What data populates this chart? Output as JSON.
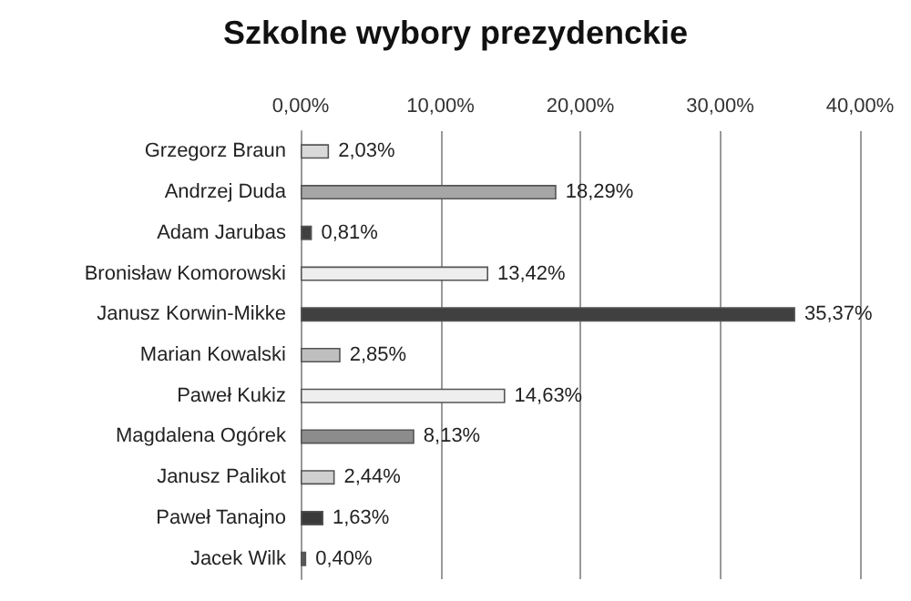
{
  "chart_data": {
    "type": "bar",
    "orientation": "horizontal",
    "title": "Szkolne wybory prezydenckie",
    "categories": [
      "Grzegorz Braun",
      "Andrzej Duda",
      "Adam Jarubas",
      "Bronisław Komorowski",
      "Janusz Korwin-Mikke",
      "Marian Kowalski",
      "Paweł Kukiz",
      "Magdalena Ogórek",
      "Janusz Palikot",
      "Paweł Tanajno",
      "Jacek Wilk"
    ],
    "values": [
      2.03,
      18.29,
      0.81,
      13.42,
      35.37,
      2.85,
      14.63,
      8.13,
      2.44,
      1.63,
      0.4
    ],
    "value_labels": [
      "2,03%",
      "18,29%",
      "0,81%",
      "13,42%",
      "35,37%",
      "2,85%",
      "14,63%",
      "8,13%",
      "2,44%",
      "1,63%",
      "0,40%"
    ],
    "colors": [
      "#d9d9d9",
      "#a6a6a6",
      "#404040",
      "#ededed",
      "#404040",
      "#bfbfbf",
      "#eeeeee",
      "#8c8c8c",
      "#d0d0d0",
      "#3a3a3a",
      "#595959"
    ],
    "xlim": [
      0,
      40
    ],
    "xticks": [
      {
        "value": 0,
        "label": "0,00%"
      },
      {
        "value": 10,
        "label": "10,00%"
      },
      {
        "value": 20,
        "label": "20,00%"
      },
      {
        "value": 30,
        "label": "30,00%"
      },
      {
        "value": 40,
        "label": "40,00%"
      }
    ],
    "grid": "x"
  }
}
